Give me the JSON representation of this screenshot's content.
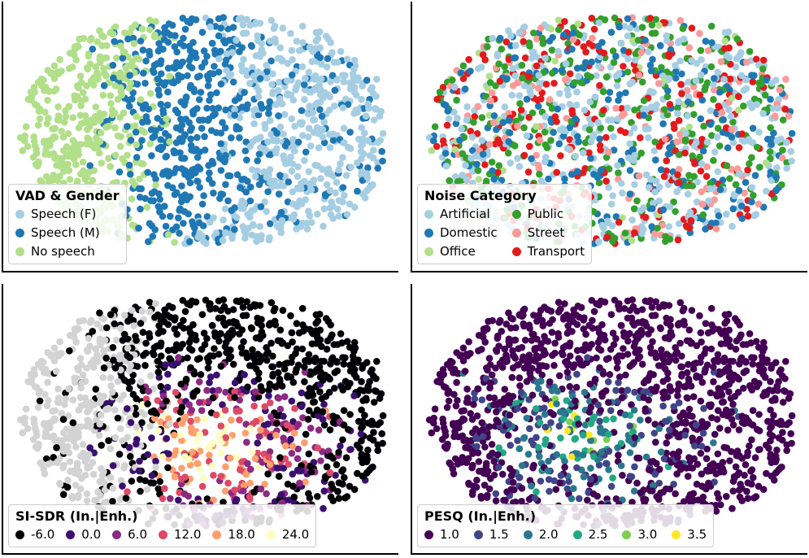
{
  "chart_data": [
    {
      "type": "scatter",
      "panel": "top-left",
      "title": "",
      "legend": {
        "title": "VAD & Gender",
        "placement": "bottom-left",
        "columns": 1,
        "entries": [
          {
            "label": "Speech (F)",
            "color": "#a6cee3"
          },
          {
            "label": "Speech (M)",
            "color": "#1f78b4"
          },
          {
            "label": "No speech",
            "color": "#b2df8a"
          }
        ]
      },
      "xlabel": "",
      "ylabel": "",
      "grid": false
    },
    {
      "type": "scatter",
      "panel": "top-right",
      "title": "",
      "legend": {
        "title": "Noise Category",
        "placement": "bottom-left",
        "columns": 2,
        "entries": [
          {
            "label": "Artificial",
            "color": "#a6cee3"
          },
          {
            "label": "Domestic",
            "color": "#1f78b4"
          },
          {
            "label": "Office",
            "color": "#b2df8a"
          },
          {
            "label": "Public",
            "color": "#33a02c"
          },
          {
            "label": "Street",
            "color": "#fb9a99"
          },
          {
            "label": "Transport",
            "color": "#e31a1c"
          }
        ]
      },
      "xlabel": "",
      "ylabel": "",
      "grid": false
    },
    {
      "type": "scatter",
      "panel": "bottom-left",
      "title": "",
      "legend": {
        "title": "SI-SDR (In.|Enh.)",
        "placement": "bottom-left",
        "columns": 6,
        "entries": [
          {
            "label": "-6.0",
            "color": "#000004"
          },
          {
            "label": "0.0",
            "color": "#3b0f70"
          },
          {
            "label": "6.0",
            "color": "#8c2981"
          },
          {
            "label": "12.0",
            "color": "#de4968"
          },
          {
            "label": "18.0",
            "color": "#fe9f6d"
          },
          {
            "label": "24.0",
            "color": "#fcfdbf"
          }
        ]
      },
      "xlabel": "",
      "ylabel": "",
      "grid": false
    },
    {
      "type": "scatter",
      "panel": "bottom-right",
      "title": "",
      "legend": {
        "title": "PESQ (In.|Enh.)",
        "placement": "bottom-left",
        "columns": 6,
        "entries": [
          {
            "label": "1.0",
            "color": "#440154"
          },
          {
            "label": "1.5",
            "color": "#414487"
          },
          {
            "label": "2.0",
            "color": "#2a788e"
          },
          {
            "label": "2.5",
            "color": "#22a884"
          },
          {
            "label": "3.0",
            "color": "#7ad151"
          },
          {
            "label": "3.5",
            "color": "#fde725"
          }
        ]
      },
      "xlabel": "",
      "ylabel": "",
      "grid": false
    }
  ]
}
